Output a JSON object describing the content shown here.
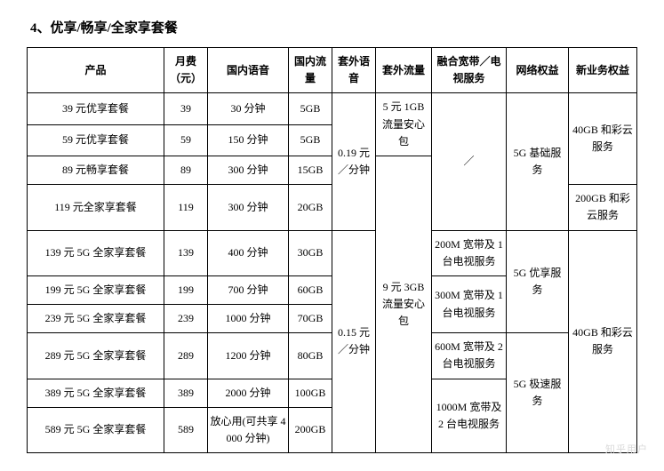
{
  "title": "4、优享/畅享/全家享套餐",
  "headers": {
    "product": "产品",
    "fee": "月费（元）",
    "voice": "国内语音",
    "data": "国内流量",
    "extraVoice": "套外语音",
    "extraData": "套外流量",
    "broadband": "融合宽带／电视服务",
    "network": "网络权益",
    "newBiz": "新业务权益"
  },
  "rows": [
    {
      "product": "39 元优享套餐",
      "fee": "39",
      "voice": "30 分钟",
      "data": "5GB"
    },
    {
      "product": "59 元优享套餐",
      "fee": "59",
      "voice": "150 分钟",
      "data": "5GB"
    },
    {
      "product": "89 元畅享套餐",
      "fee": "89",
      "voice": "300 分钟",
      "data": "15GB"
    },
    {
      "product": "119 元全家享套餐",
      "fee": "119",
      "voice": "300 分钟",
      "data": "20GB"
    },
    {
      "product": "139 元 5G 全家享套餐",
      "fee": "139",
      "voice": "400 分钟",
      "data": "30GB"
    },
    {
      "product": "199 元 5G 全家享套餐",
      "fee": "199",
      "voice": "700 分钟",
      "data": "60GB"
    },
    {
      "product": "239 元 5G 全家享套餐",
      "fee": "239",
      "voice": "1000 分钟",
      "data": "70GB"
    },
    {
      "product": "289 元 5G 全家享套餐",
      "fee": "289",
      "voice": "1200 分钟",
      "data": "80GB"
    },
    {
      "product": "389 元 5G 全家享套餐",
      "fee": "389",
      "voice": "2000 分钟",
      "data": "100GB"
    },
    {
      "product": "589 元 5G 全家享套餐",
      "fee": "589",
      "voice": "放心用(可共享 4000 分钟)",
      "data": "200GB"
    }
  ],
  "merges": {
    "extraVoice1": "0.19 元／分钟",
    "extraVoice2": "0.15 元／分钟",
    "extraData1": "5 元 1GB 流量安心包",
    "extraData2": "9 元 3GB 流量安心包",
    "broadband_none": "／",
    "broadband_139": "200M 宽带及 1 台电视服务",
    "broadband_199_239": "300M 宽带及 1 台电视服务",
    "broadband_289": "600M 宽带及 2 台电视服务",
    "broadband_389_589": "1000M 宽带及 2 台电视服务",
    "network_basic": "5G 基础服务",
    "network_premium": "5G 优享服务",
    "network_ultra": "5G 极速服务",
    "newbiz_40": "40GB 和彩云服务",
    "newbiz_200": "200GB 和彩云服务",
    "newbiz_40b": "40GB 和彩云服务"
  },
  "watermark": "知乎用户"
}
